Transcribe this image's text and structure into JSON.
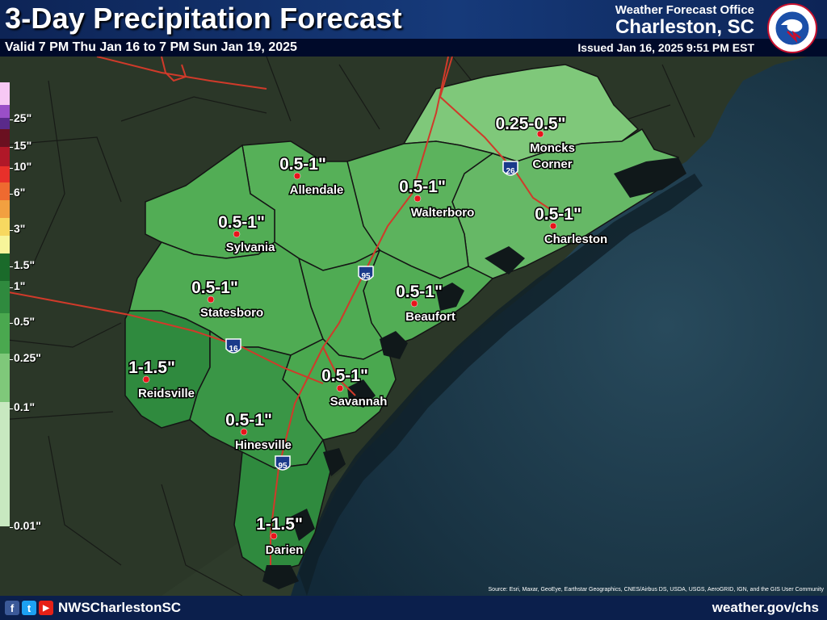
{
  "header": {
    "title": "3-Day Precipitation Forecast",
    "valid": "Valid 7 PM Thu Jan 16 to 7 PM Sun Jan 19, 2025",
    "office_label": "Weather Forecast Office",
    "office_name": "Charleston, SC",
    "issued": "Issued Jan 16, 2025 9:51 PM EST",
    "logo_text": "NATIONAL WEATHER SERVICE"
  },
  "legend": {
    "labels": [
      "25\"",
      "15\"",
      "10\"",
      "6\"",
      "3\"",
      "1.5\"",
      "1\"",
      "0.5\"",
      "0.25\"",
      "0.1\"",
      "0.01\""
    ]
  },
  "forecast_points": [
    {
      "amount": "0.5-1\"",
      "city": "Allendale"
    },
    {
      "amount": "0.5-1\"",
      "city": "Walterboro"
    },
    {
      "amount": "0.25-0.5\"",
      "city": "Moncks",
      "city2": "Corner"
    },
    {
      "amount": "0.5-1\"",
      "city": "Charleston"
    },
    {
      "amount": "0.5-1\"",
      "city": "Sylvania"
    },
    {
      "amount": "0.5-1\"",
      "city": "Statesboro"
    },
    {
      "amount": "0.5-1\"",
      "city": "Beaufort"
    },
    {
      "amount": "1-1.5\"",
      "city": "Reidsville"
    },
    {
      "amount": "0.5-1\"",
      "city": "Savannah"
    },
    {
      "amount": "0.5-1\"",
      "city": "Hinesville"
    },
    {
      "amount": "1-1.5\"",
      "city": "Darien"
    }
  ],
  "interstates": [
    "95",
    "95",
    "26",
    "16"
  ],
  "colors": {
    "zone_lightest": "#7fc87a",
    "zone_light": "#66b866",
    "zone_mid": "#4aa84f",
    "zone_dark": "#2f8a3e",
    "ocean": "#1b3648",
    "land": "#2c3a2a",
    "city_dot": "#e8141b",
    "road": "#d03a2a"
  },
  "footer": {
    "social": [
      "f",
      "t",
      "▶"
    ],
    "handle": "NWSCharlestonSC",
    "website": "weather.gov/chs",
    "source": "Source: Esri, Maxar, GeoEye, Earthstar Geographics, CNES/Airbus DS, USDA, USGS, AeroGRID, IGN, and the GIS User Community"
  }
}
